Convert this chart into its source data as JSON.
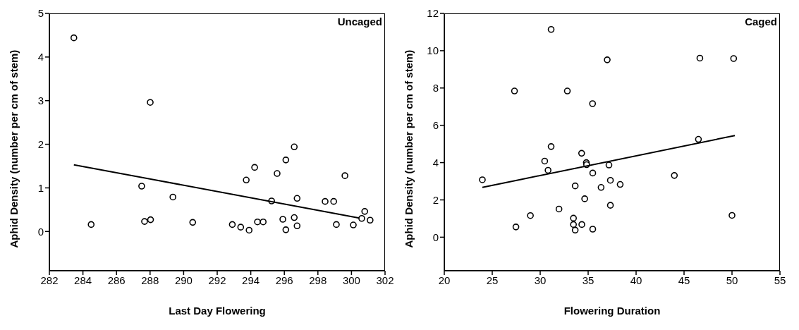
{
  "chart_data": [
    {
      "type": "scatter",
      "xlabel": "Last Day Flowering",
      "ylabel": "Aphid Density (number per cm of stem)",
      "annotations": [
        "Uncaged"
      ],
      "xlim": [
        282,
        302
      ],
      "xticks": [
        282,
        284,
        286,
        288,
        290,
        292,
        294,
        296,
        298,
        300,
        302
      ],
      "ylim": [
        -0.9,
        5
      ],
      "yticks": [
        0,
        1,
        2,
        3,
        4,
        5
      ],
      "grid": false,
      "legend": false,
      "marker": "circle",
      "series": [
        {
          "type": "scatter",
          "color": "#000000",
          "x": [
            283.46,
            284.49,
            287.5,
            287.67,
            288.03,
            288.01,
            289.36,
            290.54,
            292.9,
            293.4,
            293.9,
            293.73,
            294.23,
            294.4,
            294.74,
            295.24,
            295.57,
            295.91,
            296.09,
            296.09,
            296.59,
            296.59,
            296.76,
            296.76,
            298.43,
            298.94,
            299.1,
            299.61,
            300.11,
            300.61,
            300.79,
            301.11
          ],
          "values": [
            4.44,
            0.16,
            1.04,
            0.23,
            0.27,
            2.96,
            0.79,
            0.21,
            0.16,
            0.1,
            0.03,
            1.18,
            1.47,
            0.22,
            0.22,
            0.7,
            1.33,
            0.28,
            1.64,
            0.04,
            1.94,
            0.32,
            0.76,
            0.13,
            0.69,
            0.69,
            0.16,
            1.28,
            0.15,
            0.3,
            0.46,
            0.26
          ]
        },
        {
          "type": "line",
          "color": "#000000",
          "x": [
            283.46,
            300.47
          ],
          "values": [
            1.53,
            0.31
          ],
          "marker": "none",
          "line_style": "solid"
        }
      ]
    },
    {
      "type": "scatter",
      "xlabel": "Flowering Duration",
      "ylabel": "Aphid Density (number per cm of stem)",
      "annotations": [
        "Caged"
      ],
      "xlim": [
        20,
        55
      ],
      "xticks": [
        20,
        25,
        30,
        35,
        40,
        45,
        50,
        55
      ],
      "ylim": [
        -1.8,
        12
      ],
      "yticks": [
        0,
        2,
        4,
        6,
        8,
        10,
        12
      ],
      "grid": false,
      "legend": false,
      "marker": "circle",
      "series": [
        {
          "type": "scatter",
          "color": "#000000",
          "x": [
            23.97,
            27.32,
            27.47,
            28.98,
            30.47,
            30.82,
            31.14,
            31.14,
            31.96,
            32.83,
            33.47,
            33.47,
            33.65,
            33.65,
            34.32,
            34.34,
            34.64,
            34.81,
            34.84,
            35.46,
            35.48,
            35.48,
            36.35,
            36.99,
            37.17,
            37.32,
            37.32,
            38.34,
            43.99,
            46.5,
            46.65,
            50.0,
            50.17
          ],
          "values": [
            3.08,
            7.84,
            0.55,
            1.16,
            4.08,
            3.59,
            11.14,
            4.86,
            1.51,
            7.84,
            1.02,
            0.68,
            2.75,
            0.38,
            4.5,
            0.68,
            2.06,
            4.0,
            3.89,
            7.16,
            3.44,
            0.43,
            2.67,
            9.51,
            3.87,
            3.05,
            1.71,
            2.83,
            3.31,
            5.25,
            9.6,
            1.17,
            9.58
          ]
        },
        {
          "type": "line",
          "color": "#000000",
          "x": [
            23.97,
            50.3
          ],
          "values": [
            2.67,
            5.45
          ],
          "marker": "none",
          "line_style": "solid"
        }
      ]
    }
  ]
}
